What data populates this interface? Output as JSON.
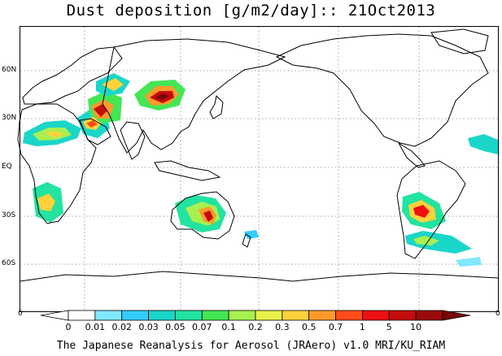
{
  "title": "Dust deposition [g/m2/day]:: 21Oct2013",
  "footer": "The Japanese Reanalysis for Aerosol (JRAero) v1.0 MRI/KU_RIAM",
  "lat_labels": [
    "60N",
    "30N",
    "EQ",
    "30S",
    "60S"
  ],
  "edge_labels": {
    "left": "0",
    "right": "0"
  },
  "colorbar": {
    "labels": [
      "0",
      "0.01",
      "0.02",
      "0.03",
      "0.05",
      "0.07",
      "0.1",
      "0.2",
      "0.3",
      "0.5",
      "0.7",
      "1",
      "5",
      "10"
    ],
    "colors": [
      "#ffffff",
      "#ffffff",
      "#80e8ff",
      "#33ccff",
      "#1ad6c8",
      "#22e3a0",
      "#44e655",
      "#a8ef50",
      "#e8f048",
      "#ffd23c",
      "#ff9a2a",
      "#ff4c1a",
      "#ee1010",
      "#c40c0c",
      "#9a0a0a",
      "#7a0606"
    ]
  },
  "colors": {
    "coast": "#000000",
    "grid": "#888888"
  }
}
